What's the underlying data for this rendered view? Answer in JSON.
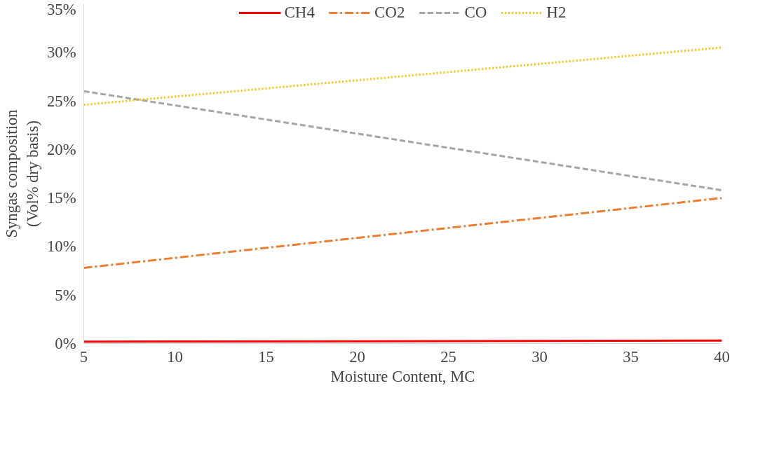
{
  "chart_data": {
    "type": "line",
    "x": [
      5,
      40
    ],
    "xlabel": "Moisture Content, MC",
    "ylabel": "Syngas composition\n(Vol% dry basis)",
    "xlim": [
      5,
      40
    ],
    "xticks": [
      5,
      10,
      15,
      20,
      25,
      30,
      35,
      40
    ],
    "ylim": [
      0,
      35
    ],
    "yticks": [
      {
        "value": 0,
        "label": "0%"
      },
      {
        "value": 5,
        "label": "5%"
      },
      {
        "value": 10,
        "label": "10%"
      },
      {
        "value": 15,
        "label": "15%"
      },
      {
        "value": 20,
        "label": "20%"
      },
      {
        "value": 25,
        "label": "25%"
      },
      {
        "value": 30,
        "label": "30%"
      },
      {
        "value": 35,
        "label": "35%"
      }
    ],
    "grid": false,
    "legend": "top",
    "marker": "none",
    "series": [
      {
        "name": "CH4",
        "color": "#ff0000",
        "values": [
          0.2,
          0.3
        ],
        "line_style": "solid"
      },
      {
        "name": "CO2",
        "color": "#ed7d31",
        "values": [
          7.8,
          15.0
        ],
        "line_style": "dashdot"
      },
      {
        "name": "CO",
        "color": "#a5a5a5",
        "values": [
          26.0,
          15.8
        ],
        "line_style": "dashed"
      },
      {
        "name": "H2",
        "color": "#ffc000",
        "values": [
          24.6,
          30.5
        ],
        "line_style": "dotted"
      }
    ]
  }
}
